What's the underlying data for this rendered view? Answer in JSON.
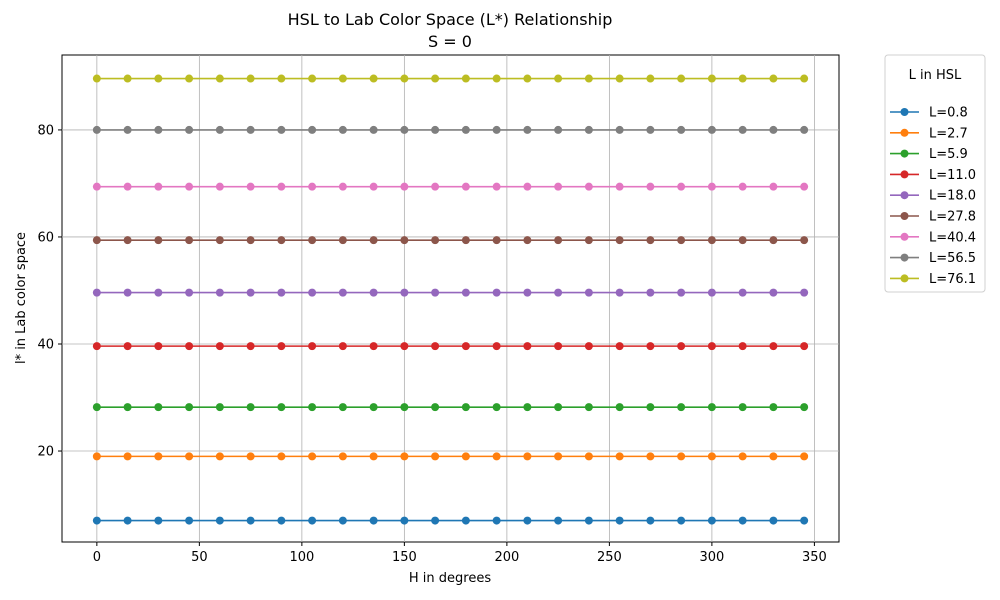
{
  "chart_data": {
    "type": "line",
    "title": "HSL to Lab Color Space (L*) Relationship",
    "subtitle": "S = 0",
    "xlabel": "H in degrees",
    "ylabel": "l* in Lab color space",
    "xlim": [
      -17,
      362
    ],
    "ylim": [
      3.0,
      94.0
    ],
    "xticks": [
      0,
      50,
      100,
      150,
      200,
      250,
      300,
      350
    ],
    "yticks": [
      20,
      40,
      60,
      80
    ],
    "grid": true,
    "legend_title": "L in HSL",
    "legend_placement": "outside-right",
    "x": [
      0,
      15,
      30,
      45,
      60,
      75,
      90,
      105,
      120,
      135,
      150,
      165,
      180,
      195,
      210,
      225,
      240,
      255,
      270,
      285,
      300,
      315,
      330,
      345
    ],
    "series": [
      {
        "name": "L=0.8",
        "color": "#1f77b4",
        "value": 7.0
      },
      {
        "name": "L=2.7",
        "color": "#ff7f0e",
        "value": 19.0
      },
      {
        "name": "L=5.9",
        "color": "#2ca02c",
        "value": 28.2
      },
      {
        "name": "L=11.0",
        "color": "#d62728",
        "value": 39.6
      },
      {
        "name": "L=18.0",
        "color": "#9467bd",
        "value": 49.6
      },
      {
        "name": "L=27.8",
        "color": "#8c564b",
        "value": 59.4
      },
      {
        "name": "L=40.4",
        "color": "#e377c2",
        "value": 69.4
      },
      {
        "name": "L=56.5",
        "color": "#7f7f7f",
        "value": 80.0
      },
      {
        "name": "L=76.1",
        "color": "#bcbd22",
        "value": 89.6
      }
    ]
  }
}
